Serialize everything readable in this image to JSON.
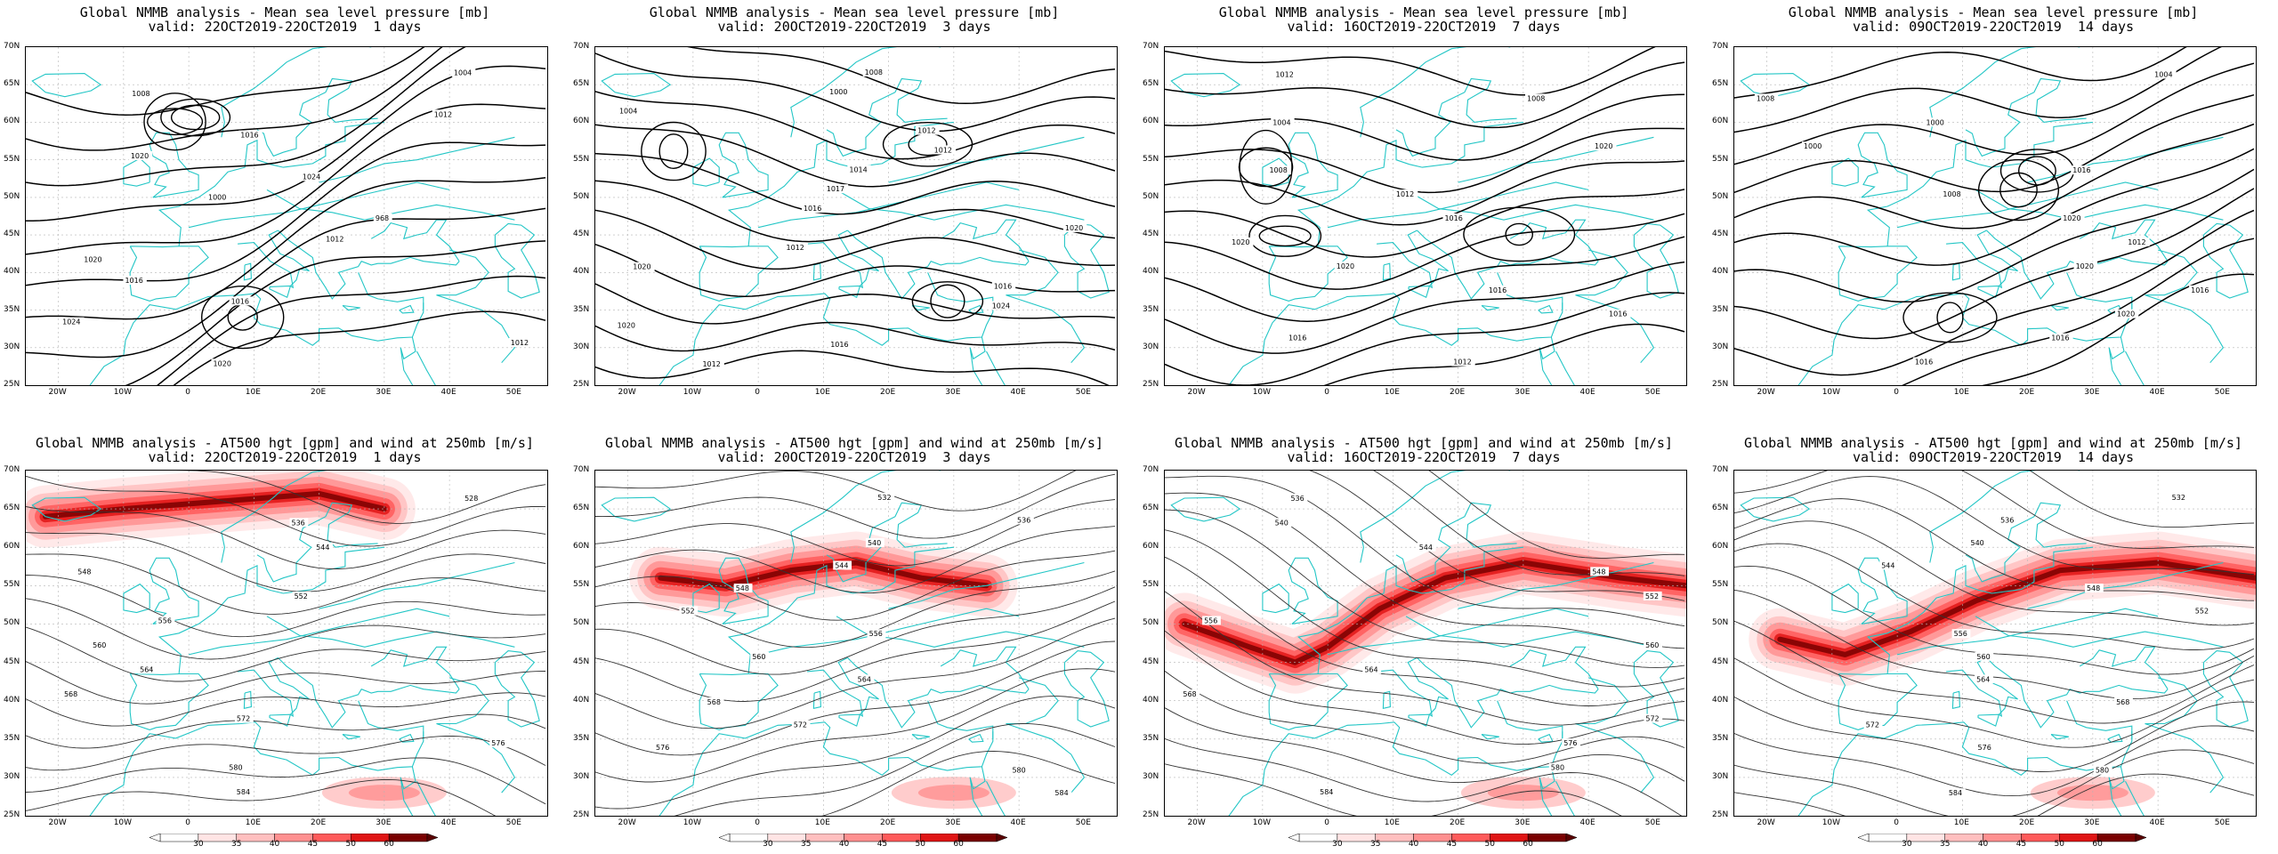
{
  "colors": {
    "coast": "#23c6c6",
    "isobar": "#000000",
    "height_contour": "#333333",
    "wind_scale": [
      "#ffe4e4",
      "#ffbfbf",
      "#ff9090",
      "#ff5a5a",
      "#e01515",
      "#7a0000"
    ]
  },
  "axes": {
    "lat_ticks": [
      "70N",
      "65N",
      "60N",
      "55N",
      "50N",
      "45N",
      "40N",
      "35N",
      "30N",
      "25N"
    ],
    "lon_ticks": [
      "20W",
      "10W",
      "0",
      "10E",
      "20E",
      "30E",
      "40E",
      "50E"
    ]
  },
  "colorbar": {
    "labels": [
      "30",
      "35",
      "40",
      "45",
      "50",
      "60"
    ]
  },
  "rows": [
    {
      "kind": "mslp",
      "title": "Global NMMB analysis - Mean sea level pressure [mb]",
      "panels": [
        {
          "valid": "valid: 22OCT2019-22OCT2019  1 days",
          "contour_labels": [
            "1004",
            "1008",
            "1012",
            "1016",
            "1020",
            "1024",
            "1000",
            "968",
            "1012",
            "1020",
            "1016",
            "1016",
            "1024",
            "1012",
            "1020"
          ]
        },
        {
          "valid": "valid: 20OCT2019-22OCT2019  3 days",
          "contour_labels": [
            "1008",
            "1000",
            "1004",
            "1012",
            "1012",
            "1014",
            "1017",
            "1016",
            "1020",
            "1012",
            "1020",
            "1016",
            "1024",
            "1020",
            "1016",
            "1012"
          ]
        },
        {
          "valid": "valid: 16OCT2019-22OCT2019  7 days",
          "contour_labels": [
            "1012",
            "1008",
            "1004",
            "1020",
            "1008",
            "1012",
            "1016",
            "1020",
            "1020",
            "1016",
            "1016",
            "1016",
            "1012"
          ]
        },
        {
          "valid": "valid: 09OCT2019-22OCT2019  14 days",
          "contour_labels": [
            "1004",
            "1008",
            "1000",
            "1000",
            "1016",
            "1008",
            "1020",
            "1012",
            "1020",
            "1016",
            "1020",
            "1016",
            "1016"
          ]
        }
      ]
    },
    {
      "kind": "z500",
      "title": "Global NMMB analysis - AT500 hgt [gpm] and wind at 250mb [m/s]",
      "panels": [
        {
          "valid": "valid: 22OCT2019-22OCT2019  1 days",
          "contour_labels": [
            "528",
            "536",
            "544",
            "548",
            "552",
            "556",
            "560",
            "564",
            "568",
            "572",
            "576",
            "580",
            "584"
          ]
        },
        {
          "valid": "valid: 20OCT2019-22OCT2019  3 days",
          "contour_labels": [
            "532",
            "536",
            "540",
            "544",
            "548",
            "552",
            "556",
            "560",
            "564",
            "568",
            "572",
            "576",
            "580",
            "584"
          ]
        },
        {
          "valid": "valid: 16OCT2019-22OCT2019  7 days",
          "contour_labels": [
            "536",
            "540",
            "544",
            "548",
            "552",
            "556",
            "560",
            "564",
            "568",
            "572",
            "576",
            "580",
            "584"
          ]
        },
        {
          "valid": "valid: 09OCT2019-22OCT2019  14 days",
          "contour_labels": [
            "532",
            "536",
            "540",
            "544",
            "548",
            "552",
            "556",
            "560",
            "564",
            "568",
            "572",
            "576",
            "580",
            "584"
          ]
        }
      ]
    }
  ]
}
